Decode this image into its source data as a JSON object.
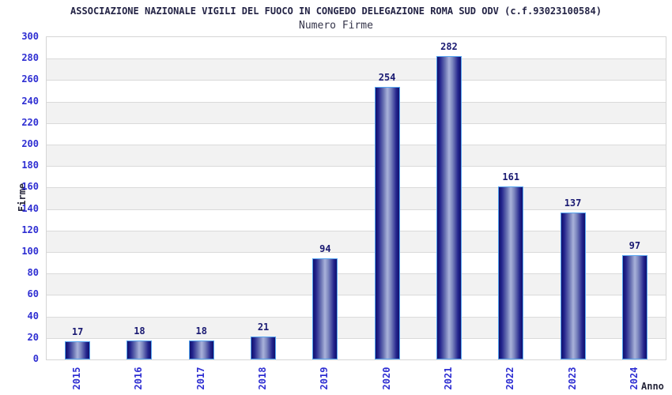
{
  "chart_data": {
    "type": "bar",
    "title": "ASSOCIAZIONE NAZIONALE VIGILI DEL FUOCO IN CONGEDO DELEGAZIONE ROMA SUD ODV (c.f.93023100584)",
    "subtitle": "Numero Firme",
    "xlabel": "Anno",
    "ylabel": "Firme",
    "categories": [
      "2015",
      "2016",
      "2017",
      "2018",
      "2019",
      "2020",
      "2021",
      "2022",
      "2023",
      "2024"
    ],
    "values": [
      17,
      18,
      18,
      21,
      94,
      254,
      282,
      161,
      137,
      97
    ],
    "ylim": [
      0,
      300
    ],
    "ytick_step": 20,
    "grid": "horizontal gridlines with alternating white/gray bands",
    "legend": "none",
    "bar_label_position": "above bar",
    "x_tick_rotation_deg": 90,
    "colors": {
      "title": "#232345",
      "subtitle": "#35354a",
      "tick_label": "#2e2ed2",
      "value_label": "#1a1a72",
      "axis_title": "#26263a",
      "bar_dark": "#10106e",
      "bar_mid": "#23248c",
      "bar_light": "#a9b2da",
      "bar_border": "#55a4f0",
      "band_gray": "#f2f2f2",
      "band_white": "#ffffff",
      "grid_line": "#dadada",
      "plot_border": "#d5d5d5",
      "background": "#ffffff"
    }
  }
}
